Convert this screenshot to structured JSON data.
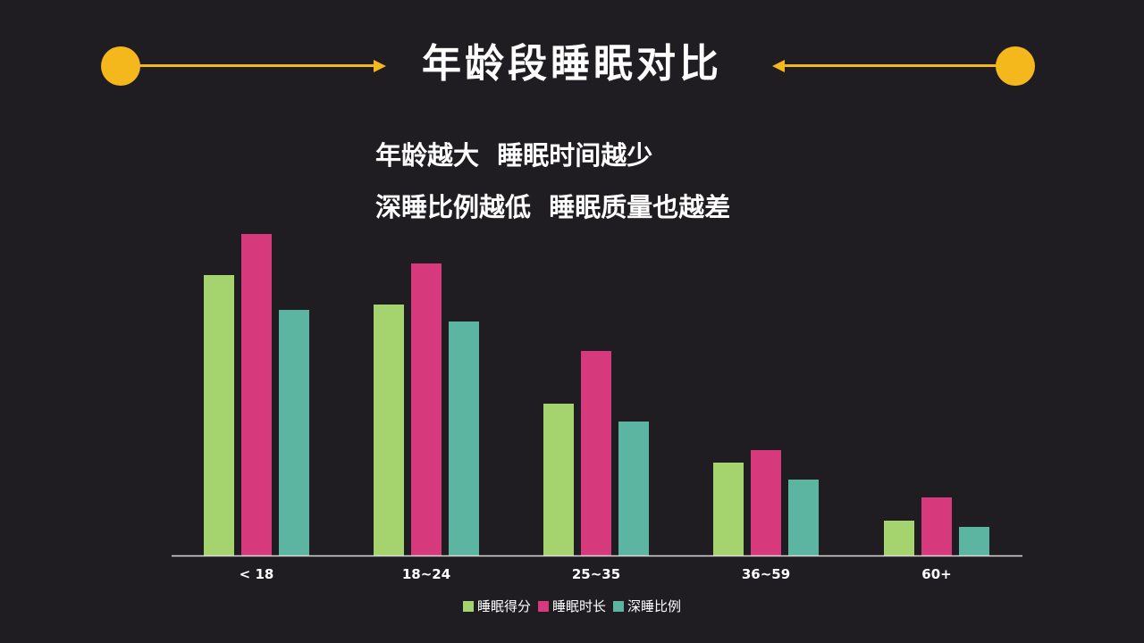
{
  "title": "年龄段睡眠对比",
  "subtitle_lines": [
    "年龄越大  睡眠时间越少",
    "深睡比例越低  睡眠质量也越差"
  ],
  "colors": {
    "accent": "#f4b81c",
    "background": "#1f1d21",
    "series": [
      "#a5d46e",
      "#d7397d",
      "#5bb5a0"
    ]
  },
  "chart_data": {
    "type": "bar",
    "categories": [
      "< 18",
      "18~24",
      "25~35",
      "36~59",
      "60+"
    ],
    "series": [
      {
        "name": "睡眠得分",
        "values": [
          314,
          281,
          170,
          104,
          39
        ]
      },
      {
        "name": "睡眠时长",
        "values": [
          360,
          327,
          229,
          118,
          65
        ]
      },
      {
        "name": "深睡比例",
        "values": [
          275,
          262,
          150,
          85,
          32
        ]
      }
    ],
    "ylim": [
      0,
      400
    ],
    "grid": false,
    "legend": "bottom"
  }
}
